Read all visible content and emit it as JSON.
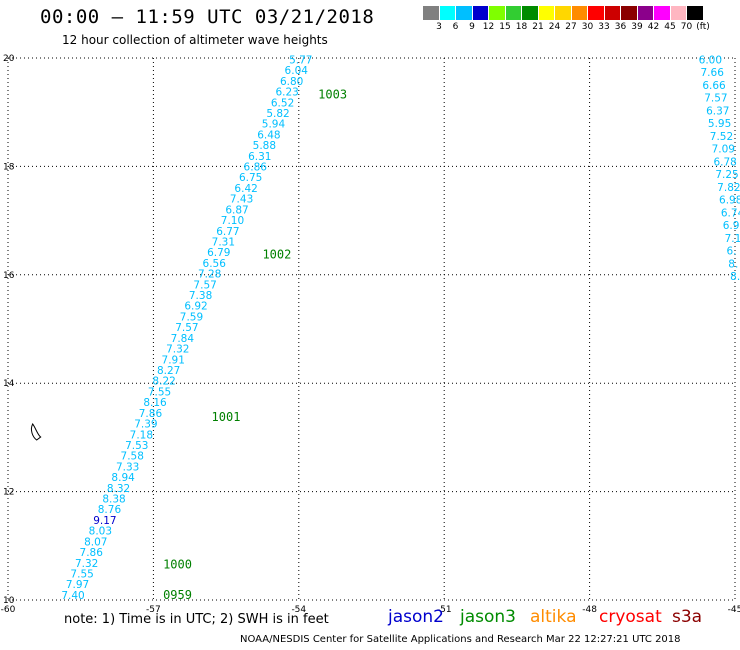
{
  "header": {
    "title": "00:00 – 11:59 UTC 03/21/2018",
    "subtitle": "12 hour collection of altimeter wave heights"
  },
  "colorbar": {
    "colors": [
      "#808080",
      "#00ffff",
      "#00bfff",
      "#0000cd",
      "#7fff00",
      "#32cd32",
      "#008b00",
      "#ffff00",
      "#ffd700",
      "#ff8c00",
      "#ff0000",
      "#cd0000",
      "#8b0000",
      "#8b008b",
      "#ff00ff",
      "#ffb6c1",
      "#000000"
    ],
    "labels": [
      "3",
      "6",
      "9",
      "12",
      "15",
      "18",
      "21",
      "24",
      "27",
      "30",
      "33",
      "36",
      "39",
      "42",
      "45",
      "70",
      "(ft)"
    ]
  },
  "map": {
    "lat_ticks": [
      "20",
      "18",
      "16",
      "14",
      "12",
      "10"
    ],
    "lon_ticks": [
      "-60",
      "-57",
      "-54",
      "-51",
      "-48",
      "-45"
    ],
    "lon_range": [
      -60,
      -45
    ],
    "lat_range": [
      10,
      20
    ],
    "track_color": "#00bfff",
    "track_main": {
      "start": [
        -58.9,
        10.02
      ],
      "end": [
        -54.2,
        19.9
      ],
      "values": [
        "7.40",
        "7.97",
        "7.55",
        "7.32",
        "7.86",
        "8.07",
        "8.03",
        "9.17",
        "8.76",
        "8.38",
        "8.32",
        "8.94",
        "7.33",
        "7.58",
        "7.53",
        "7.18",
        "7.39",
        "7.86",
        "8.16",
        "7.55",
        "8.22",
        "8.27",
        "7.91",
        "7.32",
        "7.84",
        "7.57",
        "7.59",
        "6.92",
        "7.38",
        "7.57",
        "7.28",
        "6.56",
        "6.79",
        "7.31",
        "6.77",
        "7.10",
        "6.87",
        "7.43",
        "6.42",
        "6.75",
        "6.86",
        "6.31",
        "5.88",
        "6.48",
        "5.94",
        "5.82",
        "6.52",
        "6.23",
        "6.80",
        "6.04",
        "5.77"
      ],
      "dark_indices": [
        7
      ]
    },
    "track_right": {
      "start": [
        -45.1,
        15.9
      ],
      "end": [
        -45.75,
        19.9
      ],
      "values": [
        "8.",
        "8.",
        "6.",
        "7.1",
        "6.9",
        "6.74",
        "6.98",
        "7.82",
        "7.25",
        "6.78",
        "7.09",
        "7.52",
        "5.95",
        "6.37",
        "7.57",
        "6.66",
        "7.66",
        "6.00"
      ]
    },
    "time_labels": [
      {
        "text": "0959",
        "lon": -56.8,
        "lat": 10.02
      },
      {
        "text": "1000",
        "lon": -56.8,
        "lat": 10.58
      },
      {
        "text": "1001",
        "lon": -55.8,
        "lat": 13.3
      },
      {
        "text": "1002",
        "lon": -54.75,
        "lat": 16.3
      },
      {
        "text": "1003",
        "lon": -53.6,
        "lat": 19.25
      }
    ],
    "time_color": "#008000",
    "island": {
      "lon": -59.45,
      "lat": 13.1
    }
  },
  "footer": {
    "note": "note:  1) Time is in UTC;  2) SWH is in feet",
    "satellites": [
      {
        "name": "jason2",
        "color": "#0000cd"
      },
      {
        "name": "jason3",
        "color": "#008b00"
      },
      {
        "name": "altika",
        "color": "#ff8c00"
      },
      {
        "name": "cryosat",
        "color": "#ff0000"
      },
      {
        "name": "s3a",
        "color": "#8b0000"
      }
    ],
    "credit": "NOAA/NESDIS Center for Satellite Applications and Research     Mar 22 12:27:21 UTC 2018"
  }
}
